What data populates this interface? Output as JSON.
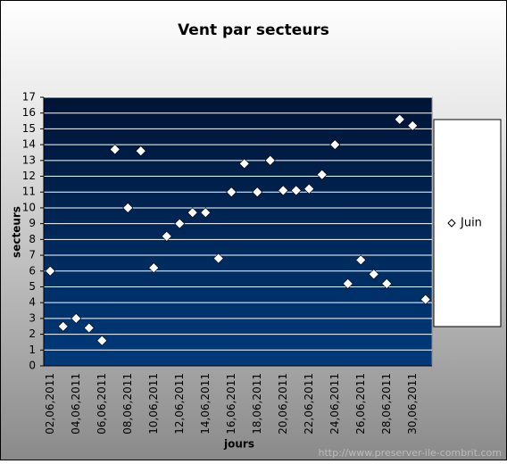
{
  "chart_data": {
    "type": "scatter",
    "title": "Vent par secteurs",
    "x_label": "jours",
    "y_label": "secteurs",
    "categories": [
      "02,06,2011",
      null,
      "04,06,2011",
      null,
      "06,06,2011",
      null,
      "08,06,2011",
      null,
      "10,06,2011",
      null,
      "12,06,2011",
      null,
      "14,06,2011",
      null,
      "16,06,2011",
      null,
      "18,06,2011",
      null,
      "20,06,2011",
      null,
      "22,06,2011",
      null,
      "24,06,2011",
      null,
      "26,06,2011",
      null,
      "28,06,2011",
      null,
      "30,06,2011",
      null
    ],
    "series": [
      {
        "name": "Juin",
        "color": "#ffffff",
        "values": [
          6.0,
          2.5,
          3.0,
          2.4,
          1.6,
          13.7,
          10.0,
          13.6,
          6.2,
          8.2,
          9.0,
          9.7,
          9.7,
          6.8,
          11.0,
          12.8,
          11.0,
          13.0,
          11.1,
          11.1,
          11.2,
          12.1,
          14.0,
          5.2,
          6.7,
          5.8,
          5.2,
          15.6,
          15.2,
          4.2
        ]
      }
    ],
    "ylim": [
      0,
      17
    ],
    "yticks": [
      0,
      1,
      2,
      3,
      4,
      5,
      6,
      7,
      8,
      9,
      10,
      11,
      12,
      13,
      14,
      15,
      16,
      17
    ],
    "grid": true,
    "legend": "right",
    "source": "http://www.preserver-ile-combrit.com"
  }
}
